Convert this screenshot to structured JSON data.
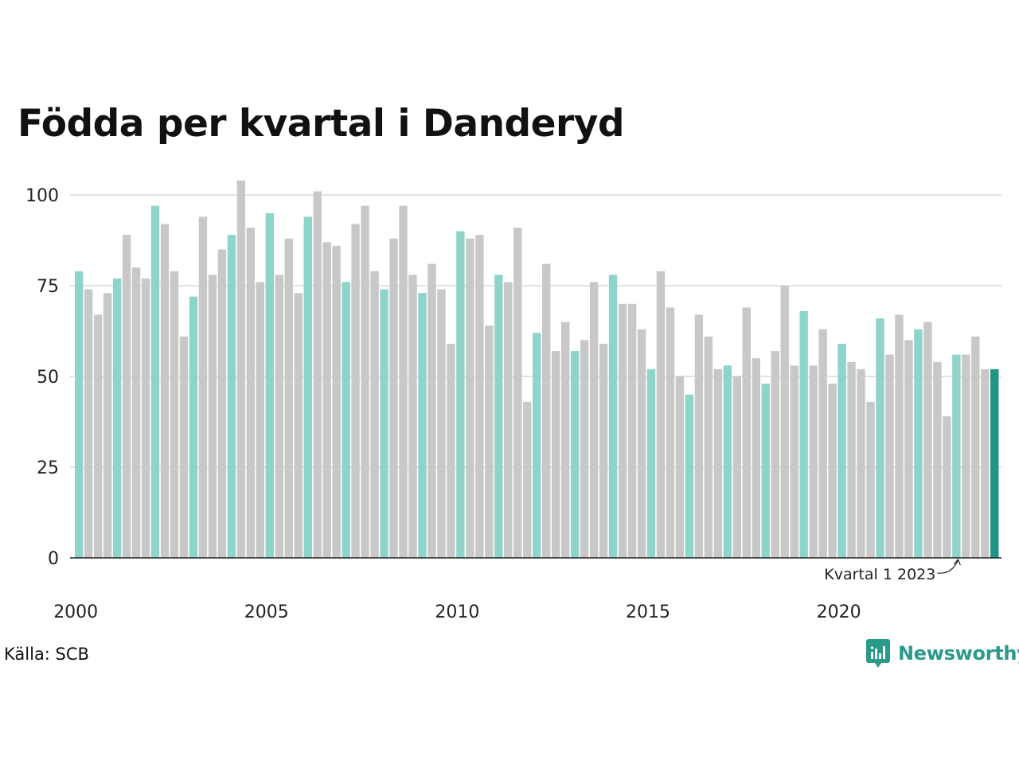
{
  "title": "Födda per kvartal i Danderyd",
  "source": "Källa: SCB",
  "brand": {
    "name": "Newsworthy",
    "icon": "newsworthy-logo-icon"
  },
  "colors": {
    "q1": "#8fd4cb",
    "other": "#c8c8c8",
    "latest": "#1f9487",
    "grid": "#e2e2e2",
    "axis": "#222222"
  },
  "chart_data": {
    "type": "bar",
    "title": "Födda per kvartal i Danderyd",
    "xlabel": "",
    "ylabel": "",
    "ylim": [
      0,
      105
    ],
    "yticks": [
      0,
      25,
      50,
      75,
      100
    ],
    "x_tick_labels": [
      "2000",
      "2005",
      "2010",
      "2015",
      "2020"
    ],
    "grid": true,
    "start_year": 2000,
    "quarters_per_year": 4,
    "values": [
      79,
      74,
      67,
      73,
      77,
      89,
      80,
      77,
      97,
      92,
      79,
      61,
      72,
      94,
      78,
      85,
      89,
      104,
      91,
      76,
      95,
      78,
      88,
      73,
      94,
      101,
      87,
      86,
      76,
      92,
      97,
      79,
      74,
      88,
      97,
      78,
      73,
      81,
      74,
      59,
      90,
      88,
      89,
      64,
      78,
      76,
      91,
      43,
      62,
      81,
      57,
      65,
      57,
      60,
      76,
      59,
      78,
      70,
      70,
      63,
      52,
      79,
      69,
      50,
      45,
      67,
      61,
      52,
      53,
      50,
      69,
      55,
      48,
      57,
      75,
      53,
      68,
      53,
      63,
      48,
      59,
      54,
      52,
      43,
      66,
      56,
      67,
      60,
      63,
      65,
      54,
      39,
      56,
      56,
      61,
      52,
      52
    ],
    "annotation": "Kvartal 1 2023"
  }
}
